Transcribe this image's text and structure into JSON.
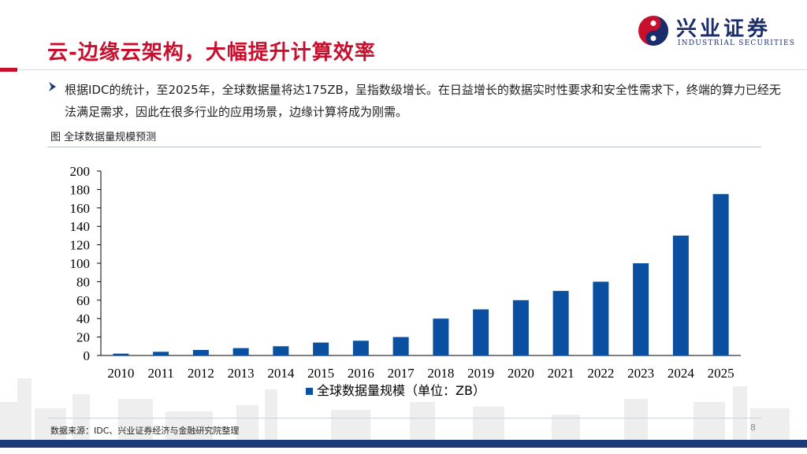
{
  "header": {
    "title": "云-边缘云架构，大幅提升计算效率",
    "logo_cn": "兴业证券",
    "logo_en": "INDUSTRIAL SECURITIES",
    "accent_color": "#c8102e",
    "logo_color": "#1b2c6b"
  },
  "body": {
    "bullet_icon": "chevron-right-icon",
    "bullet_text": "根据IDC的统计，至2025年，全球数据量将达175ZB，呈指数级增长。在日益增长的数据实时性要求和安全性需求下，终端的算力已经无法满足需求，因此在很多行业的应用场景，边缘计算将成为刚需。",
    "figure_caption": "图  全球数据量规模预测"
  },
  "chart_data": {
    "type": "bar",
    "categories": [
      "2010",
      "2011",
      "2012",
      "2013",
      "2014",
      "2015",
      "2016",
      "2017",
      "2018",
      "2019",
      "2020",
      "2021",
      "2022",
      "2023",
      "2024",
      "2025"
    ],
    "series": [
      {
        "name": "全球数据量规模（单位：ZB）",
        "values": [
          2,
          4,
          6,
          8,
          10,
          14,
          16,
          20,
          40,
          50,
          60,
          70,
          80,
          100,
          130,
          175
        ],
        "color": "#0b4fa0"
      }
    ],
    "yticks": [
      "0",
      "20",
      "40",
      "60",
      "80",
      "100",
      "120",
      "140",
      "160",
      "180",
      "200"
    ],
    "ylim": [
      0,
      200
    ],
    "grid": false,
    "legend_position": "bottom"
  },
  "footer": {
    "source": "数据来源：IDC、兴业证券经济与金融研究院整理",
    "page": "8",
    "band_color": "#1b3a78"
  }
}
